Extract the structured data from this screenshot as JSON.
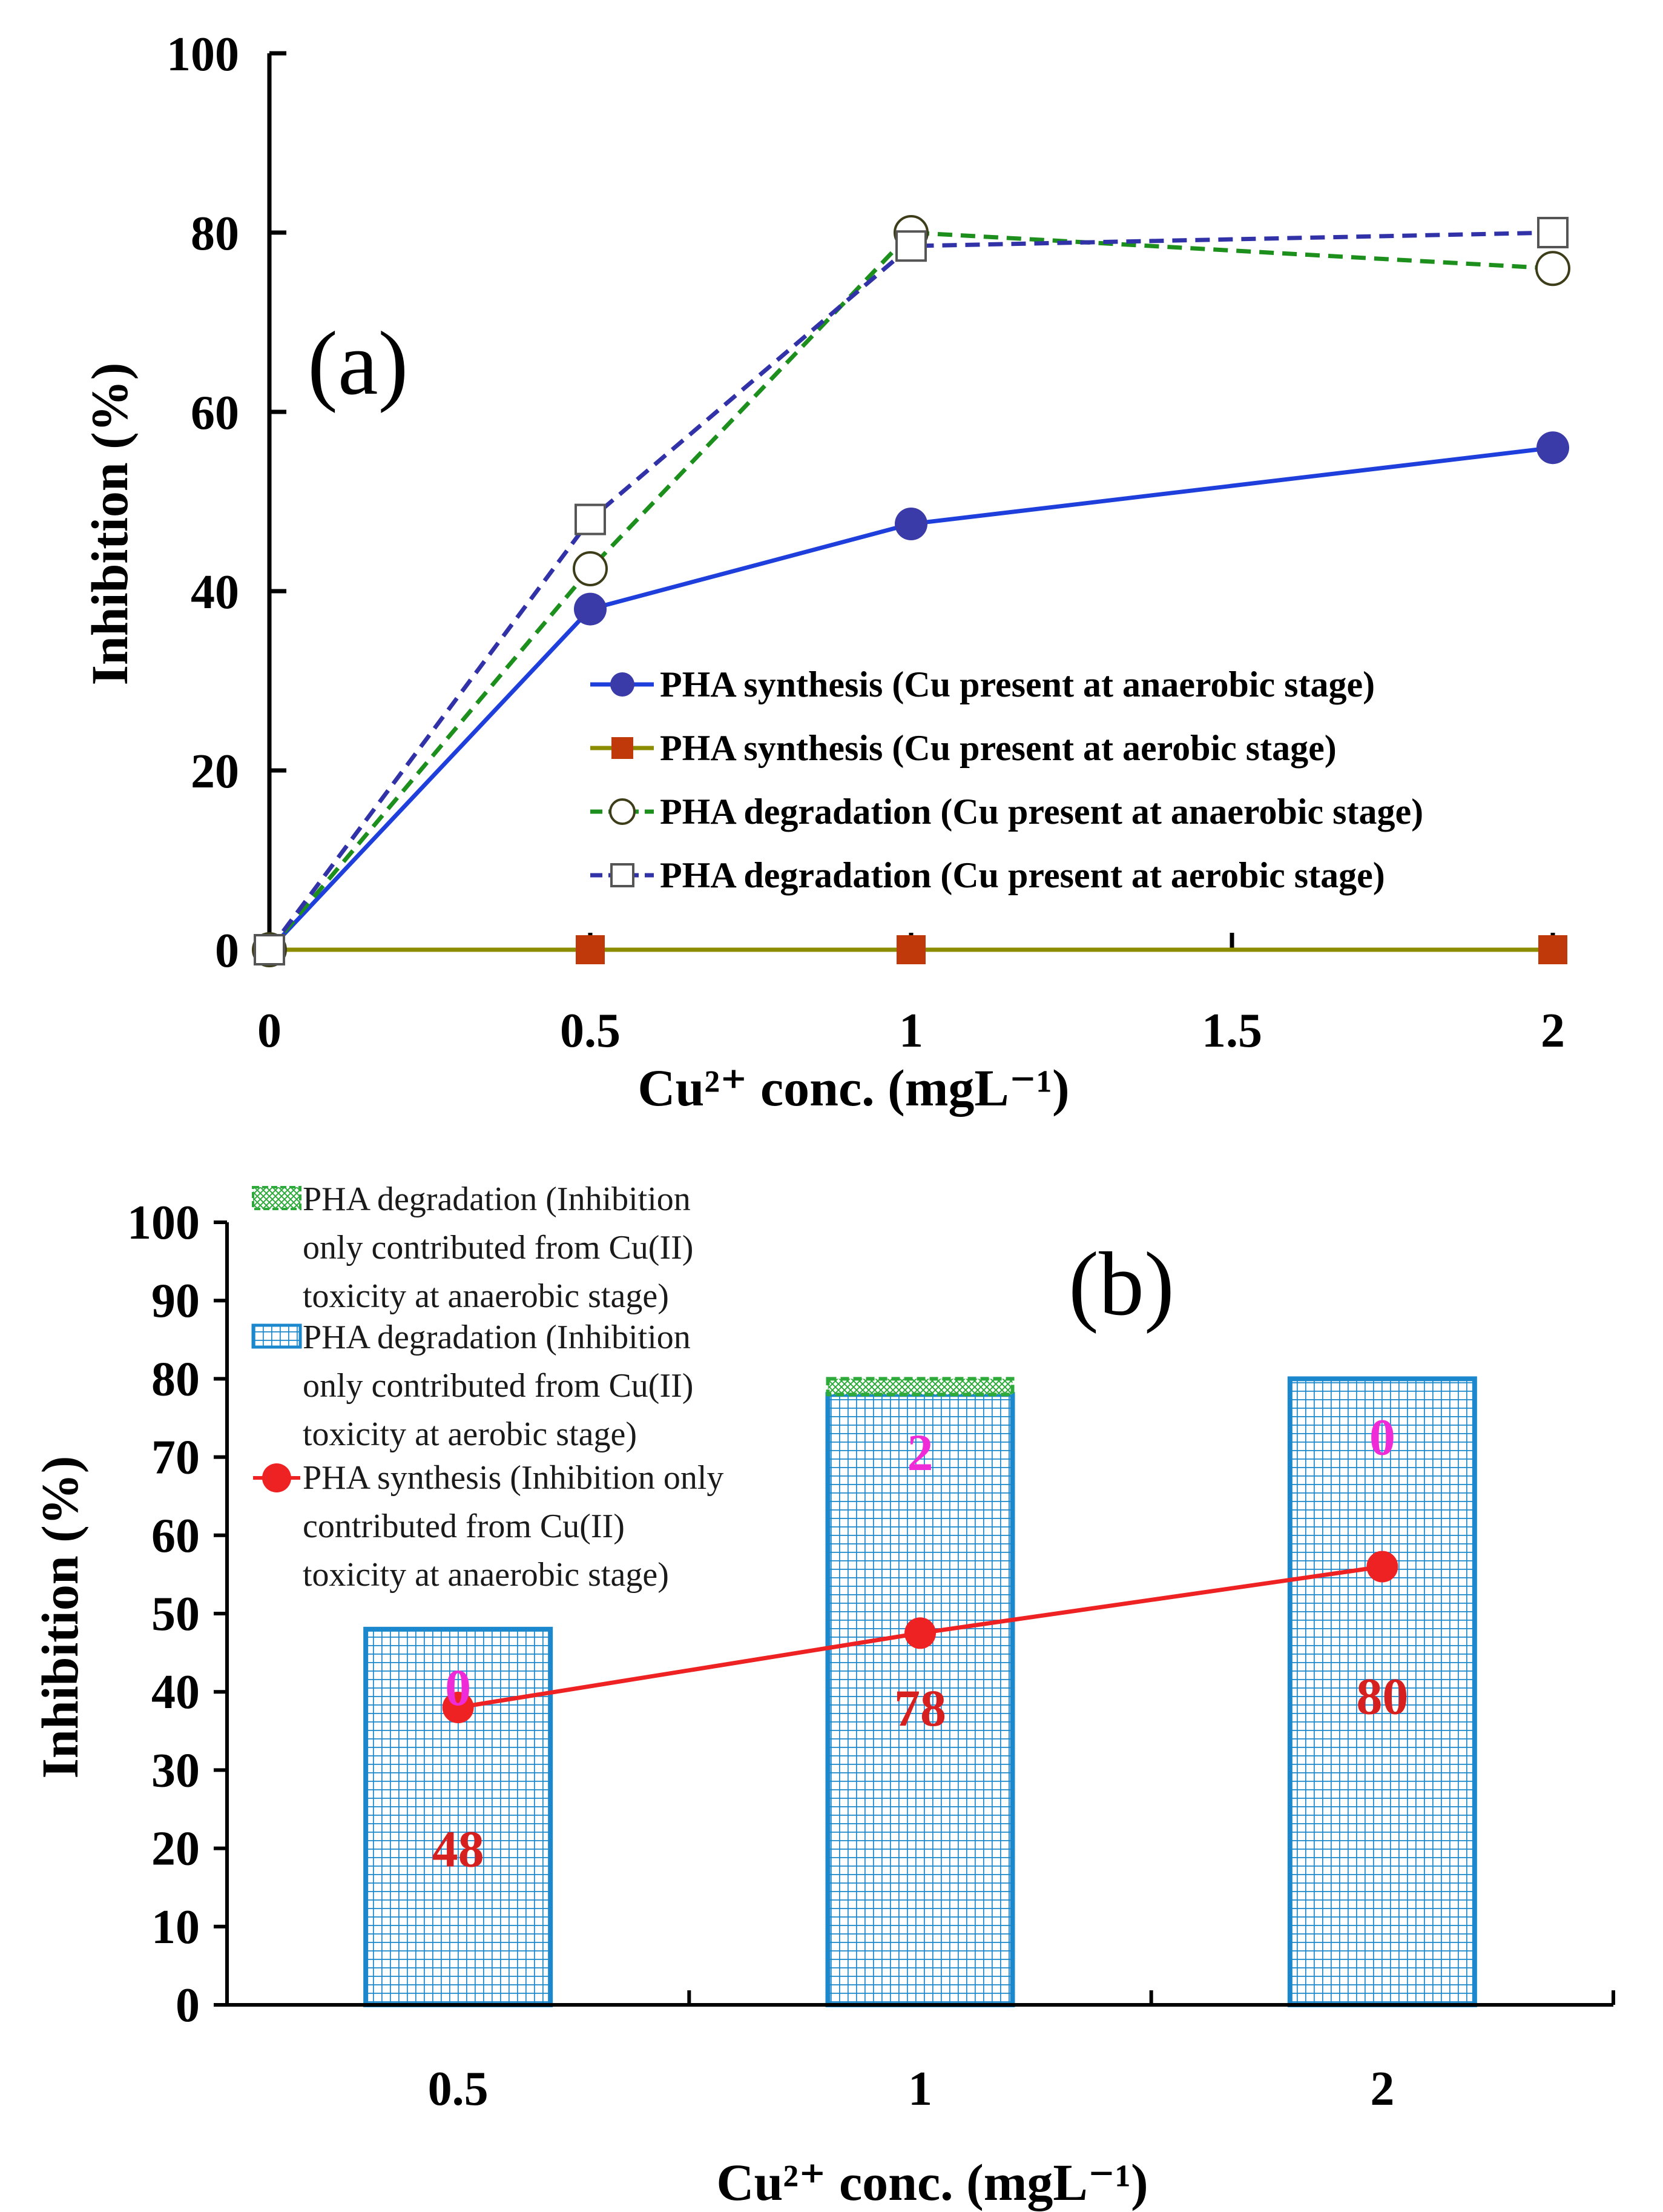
{
  "chart_data": [
    {
      "id": "a",
      "type": "line",
      "panel_label": "(a)",
      "xlabel": "Cu²⁺ conc. (mgL⁻¹)",
      "ylabel": "Inhibition (%)",
      "xlim": [
        0,
        2
      ],
      "ylim": [
        0,
        100
      ],
      "x_ticks": [
        "0",
        "0.5",
        "1",
        "1.5",
        "2"
      ],
      "y_ticks": [
        "0",
        "20",
        "40",
        "60",
        "80",
        "100"
      ],
      "x": [
        0,
        0.5,
        1,
        2
      ],
      "series": [
        {
          "name": "PHA synthesis (Cu present at anaerobic stage)",
          "values": [
            0,
            38,
            47.5,
            56
          ],
          "color": "#1f3fdc",
          "marker": "filled-circle",
          "line": "solid",
          "marker_color": "#3a3aa8"
        },
        {
          "name": "PHA synthesis (Cu present at aerobic stage)",
          "values": [
            0,
            0,
            0,
            0
          ],
          "color": "#8c8c00",
          "marker": "filled-square",
          "line": "solid",
          "marker_color": "#c0390b"
        },
        {
          "name": "PHA degradation (Cu present at anaerobic stage)",
          "values": [
            0,
            42.5,
            80,
            76
          ],
          "color": "#1d8f1d",
          "marker": "open-circle",
          "line": "dashed",
          "marker_color": "#3d3d1a"
        },
        {
          "name": "PHA degradation (Cu present at aerobic stage)",
          "values": [
            0,
            48,
            78.5,
            80
          ],
          "color": "#3232a8",
          "marker": "open-square",
          "line": "dashed",
          "marker_color": "#555555"
        }
      ],
      "legend_position": "center-right"
    },
    {
      "id": "b",
      "type": "bar",
      "panel_label": "(b)",
      "xlabel": "Cu²⁺ conc. (mgL⁻¹)",
      "ylabel": "Inhibition (%)",
      "ylim": [
        0,
        100
      ],
      "y_ticks": [
        "0",
        "10",
        "20",
        "30",
        "40",
        "50",
        "60",
        "70",
        "80",
        "90",
        "100"
      ],
      "categories": [
        "0.5",
        "1",
        "2"
      ],
      "series": [
        {
          "name": "PHA degradation (Inhibition only contributed from Cu(II) toxicity at aerobic stage)",
          "kind": "stacked-bar",
          "values": [
            48,
            78,
            80
          ],
          "labels": [
            "48",
            "78",
            "80"
          ],
          "color": "#1b87cc",
          "label_color": "#d61f1f"
        },
        {
          "name": "PHA degradation (Inhibition only contributed from Cu(II) toxicity at anaerobic stage)",
          "kind": "stacked-bar",
          "values": [
            0,
            2,
            0
          ],
          "labels": [
            "0",
            "2",
            "0"
          ],
          "color": "#2eaa3a",
          "label_color": "#ee2bd6"
        },
        {
          "name": "PHA synthesis (Inhibition only contributed from Cu(II) toxicity at anaerobic stage)",
          "kind": "line",
          "values": [
            38,
            47.5,
            56
          ],
          "color": "#ee2222"
        }
      ],
      "legend_lines": [
        [
          "PHA degradation (Inhibition",
          "only contributed from Cu(II)",
          "toxicity at anaerobic stage)"
        ],
        [
          "PHA degradation (Inhibition",
          "only contributed from Cu(II)",
          "toxicity at aerobic stage)"
        ],
        [
          "PHA synthesis (Inhibition only",
          "contributed from Cu(II)",
          "toxicity at anaerobic stage)"
        ]
      ],
      "legend_position": "top-left"
    }
  ]
}
